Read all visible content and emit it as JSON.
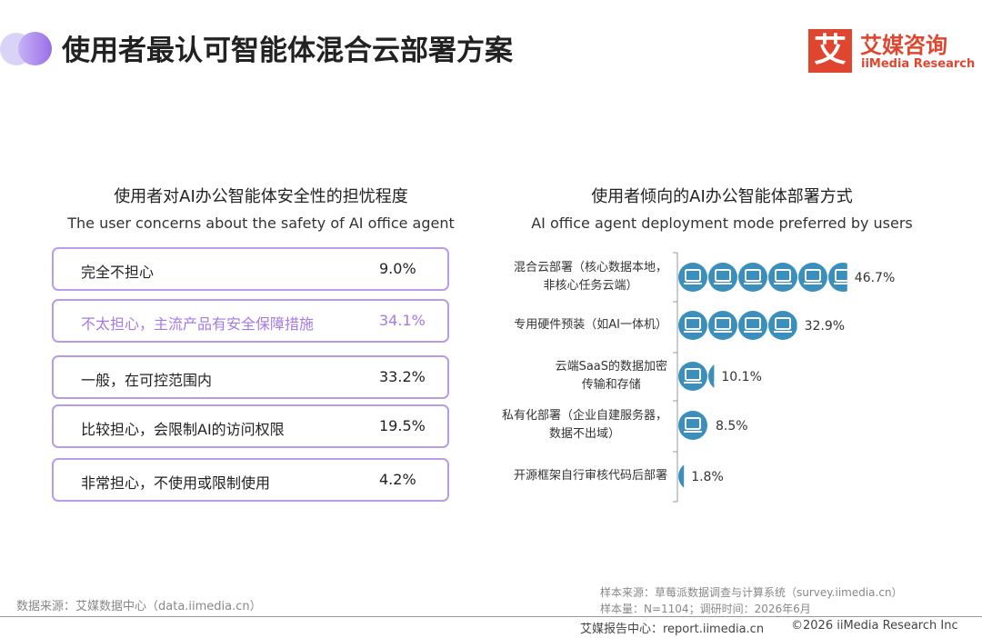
{
  "header": {
    "title": "使用者最认可智能体混合云部署方案",
    "logo_mark": "艾",
    "logo_name": "艾媒咨询",
    "logo_en": "iiMedia Research"
  },
  "concern_list": {
    "title": "使用者对AI办公智能体安全性的担忧程度",
    "subtitle": "The user concerns about the safety of AI office agent",
    "items": [
      {
        "label": "完全不担心",
        "value": "9.0%"
      },
      {
        "label": "不太担心，主流产品有安全保障措施",
        "value": "34.1%"
      },
      {
        "label": "一般，在可控范围内",
        "value": "33.2%"
      },
      {
        "label": "比较担心，会限制AI的访问权限",
        "value": "19.5%"
      },
      {
        "label": "非常担心，不使用或限制使用",
        "value": "4.2%"
      }
    ]
  },
  "chart_data": {
    "type": "pictograph",
    "title": "使用者倾向的AI办公智能体部署方式",
    "subtitle": "AI office agent deployment mode preferred by users",
    "categories": [
      "混合云部署（核心数据本地，\n非核心任务云端）",
      "专用硬件预装（如AI一体机）",
      "云端SaaS的数据加密\n传输和存储",
      "私有化部署（企业自建服务器，\n数据不出域）",
      "开源框架自行审核代码后部署"
    ],
    "values": [
      46.7,
      32.9,
      10.1,
      8.5,
      1.8
    ],
    "value_labels": [
      "46.7%",
      "32.9%",
      "10.1%",
      "8.5%",
      "1.8%"
    ],
    "color": "#3b8fbd"
  },
  "footer": {
    "source": "数据来源：艾媒数据中心（data.iimedia.cn）",
    "sample_source": "样本来源：草莓派数据调查与计算系统（survey.iimedia.cn）",
    "sample_size": "样本量：N=1104；调研时间：2026年6月",
    "report_center": "艾媒报告中心：report.iimedia.cn",
    "copyright": "©2026  iiMedia Research  Inc"
  }
}
